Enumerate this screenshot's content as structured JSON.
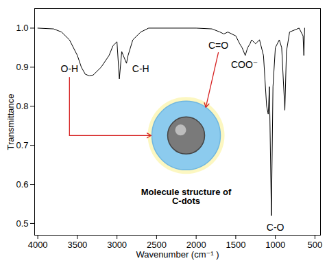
{
  "chart_data": {
    "type": "line",
    "x_label": "Wavenumber (cm⁻¹ )",
    "y_label": "Transmittance",
    "xlim": [
      4040,
      430
    ],
    "ylim": [
      0.47,
      1.05
    ],
    "xticks": [
      4000,
      3500,
      3000,
      2500,
      2000,
      1500,
      1000,
      500
    ],
    "yticks": [
      0.5,
      0.6,
      0.7,
      0.8,
      0.9,
      {
        "value": 1,
        "label": "1.0"
      }
    ],
    "color": "#000000",
    "x": [
      4000,
      3800,
      3700,
      3600,
      3500,
      3450,
      3400,
      3350,
      3300,
      3200,
      3100,
      3050,
      3000,
      2970,
      2940,
      2920,
      2880,
      2860,
      2800,
      2700,
      2600,
      2000,
      1800,
      1700,
      1650,
      1600,
      1500,
      1450,
      1420,
      1380,
      1350,
      1320,
      1300,
      1250,
      1200,
      1150,
      1110,
      1090,
      1075,
      1050,
      1030,
      1000,
      950,
      920,
      880,
      860,
      820,
      700,
      650,
      640,
      630
    ],
    "values": [
      1.0,
      0.998,
      0.99,
      0.97,
      0.93,
      0.9,
      0.882,
      0.878,
      0.88,
      0.9,
      0.93,
      0.955,
      0.965,
      0.87,
      0.94,
      0.93,
      0.91,
      0.93,
      0.97,
      0.99,
      1.0,
      1.0,
      0.998,
      0.99,
      0.985,
      0.99,
      0.98,
      0.96,
      0.95,
      0.93,
      0.95,
      0.96,
      0.97,
      0.96,
      0.97,
      0.93,
      0.8,
      0.78,
      0.85,
      0.52,
      0.85,
      0.95,
      0.97,
      0.95,
      0.79,
      0.94,
      0.99,
      1.0,
      0.98,
      0.93,
      1.0
    ],
    "annotations": [
      {
        "text": "C-H",
        "x": 2700,
        "y": 0.895
      },
      {
        "text": "COO⁻",
        "x": 1390,
        "y": 0.905
      },
      {
        "text": "C-O",
        "x": 1000,
        "y": 0.49
      }
    ],
    "inset": {
      "label": "Molecule structure of C-dots",
      "annotations": [
        {
          "text": "O-H",
          "x": 3600,
          "y": 0.895
        },
        {
          "text": "C=O",
          "x": 1720,
          "y": 0.955
        }
      ]
    }
  }
}
